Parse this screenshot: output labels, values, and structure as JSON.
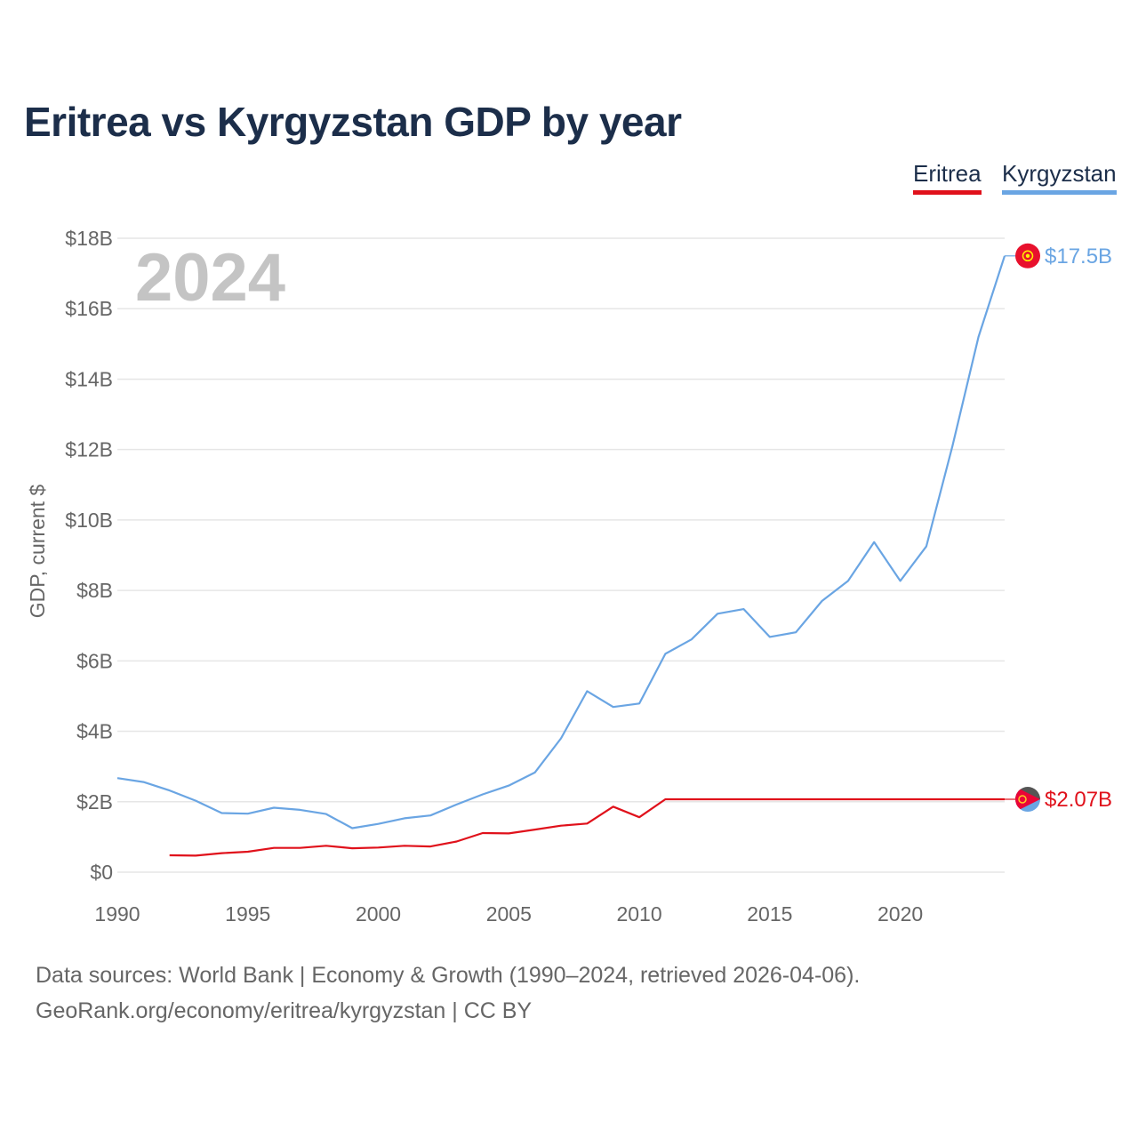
{
  "title": "Eritrea vs Kyrgyzstan GDP by year",
  "legend": [
    "Eritrea",
    "Kyrgyzstan"
  ],
  "footer": {
    "source": "Data sources: World Bank | Economy & Growth (1990–2024, retrieved 2026-04-06).",
    "credit": "GeoRank.org/economy/eritrea/kyrgyzstan | CC BY"
  },
  "colors": {
    "eritrea": "#e0111b",
    "kyrgyzstan": "#6aa5e3",
    "grid": "#e6e6e6",
    "year_label": "#c4c4c4"
  },
  "chart_data": {
    "type": "line",
    "title": "Eritrea vs Kyrgyzstan GDP by year",
    "year_label": "2024",
    "xlabel": "",
    "ylabel": "GDP, current $",
    "xlim": [
      1990,
      2024
    ],
    "ylim": [
      0,
      18
    ],
    "unit": "billion USD",
    "x_ticks": [
      "1990",
      "1995",
      "2000",
      "2005",
      "2010",
      "2015",
      "2020"
    ],
    "y_ticks": [
      "$0",
      "$2B",
      "$4B",
      "$6B",
      "$8B",
      "$10B",
      "$12B",
      "$14B",
      "$16B",
      "$18B"
    ],
    "grid": "horizontal",
    "legend_position": "top-right",
    "series": [
      {
        "name": "Eritrea",
        "end_label": "$2.07B",
        "x": [
          1992,
          1993,
          1994,
          1995,
          1996,
          1997,
          1998,
          1999,
          2000,
          2001,
          2002,
          2003,
          2004,
          2005,
          2006,
          2007,
          2008,
          2009,
          2010,
          2011,
          2024
        ],
        "values": [
          0.48,
          0.47,
          0.54,
          0.58,
          0.69,
          0.69,
          0.75,
          0.68,
          0.7,
          0.75,
          0.73,
          0.87,
          1.11,
          1.1,
          1.21,
          1.32,
          1.38,
          1.86,
          1.56,
          2.07,
          2.07
        ]
      },
      {
        "name": "Kyrgyzstan",
        "end_label": "$17.5B",
        "x": [
          1990,
          1991,
          1992,
          1993,
          1994,
          1995,
          1996,
          1997,
          1998,
          1999,
          2000,
          2001,
          2002,
          2003,
          2004,
          2005,
          2006,
          2007,
          2008,
          2009,
          2010,
          2011,
          2012,
          2013,
          2014,
          2015,
          2016,
          2017,
          2018,
          2019,
          2020,
          2021,
          2022,
          2023,
          2024
        ],
        "values": [
          2.67,
          2.56,
          2.32,
          2.03,
          1.68,
          1.66,
          1.83,
          1.77,
          1.65,
          1.25,
          1.37,
          1.53,
          1.61,
          1.92,
          2.21,
          2.46,
          2.83,
          3.8,
          5.14,
          4.69,
          4.79,
          6.2,
          6.61,
          7.34,
          7.47,
          6.68,
          6.81,
          7.7,
          8.27,
          9.37,
          8.27,
          9.25,
          12.1,
          15.2,
          17.5
        ]
      }
    ]
  }
}
